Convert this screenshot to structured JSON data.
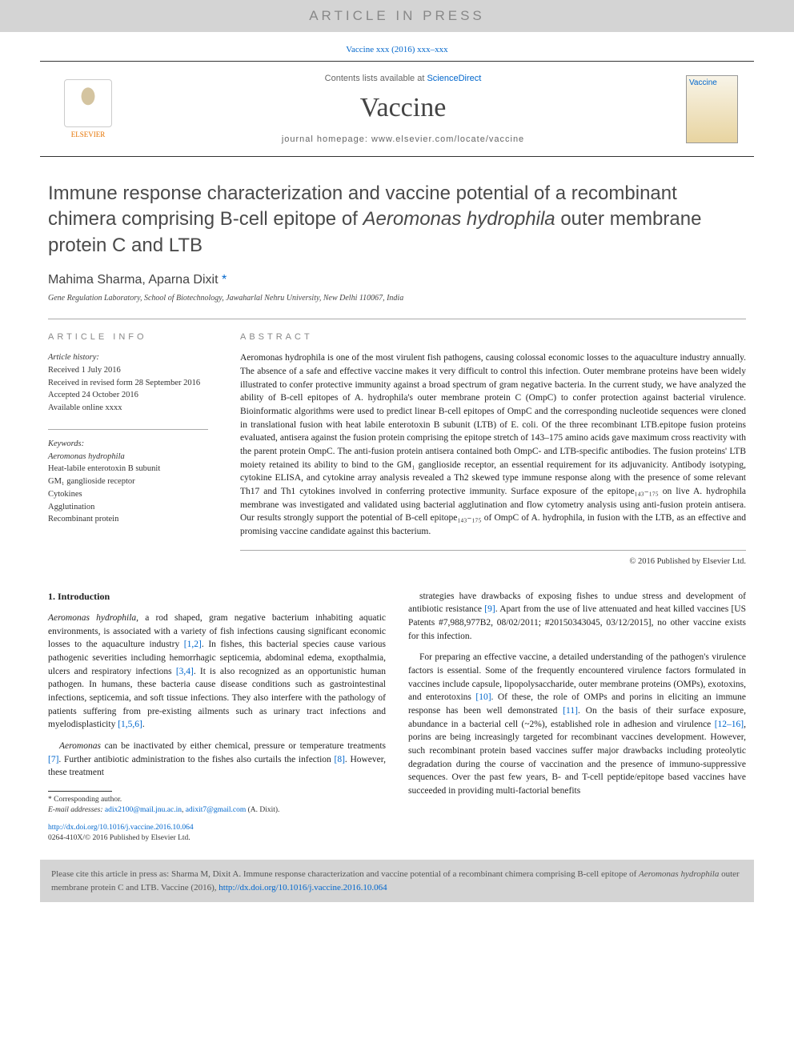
{
  "banner": "ARTICLE IN PRESS",
  "top_citation": "Vaccine xxx (2016) xxx–xxx",
  "header": {
    "contents_prefix": "Contents lists available at ",
    "contents_link": "ScienceDirect",
    "journal": "Vaccine",
    "homepage_prefix": "journal homepage: ",
    "homepage": "www.elsevier.com/locate/vaccine",
    "publisher_logo": "ELSEVIER",
    "cover_label": "Vaccine"
  },
  "title_part1": "Immune response characterization and vaccine potential of a recombinant chimera comprising B-cell epitope of ",
  "title_italic": "Aeromonas hydrophila",
  "title_part2": " outer membrane protein C and LTB",
  "authors": "Mahima Sharma, Aparna Dixit",
  "corr_mark": "*",
  "affiliation": "Gene Regulation Laboratory, School of Biotechnology, Jawaharlal Nehru University, New Delhi 110067, India",
  "info_heading": "ARTICLE INFO",
  "abstract_heading": "ABSTRACT",
  "history": {
    "label": "Article history:",
    "received": "Received 1 July 2016",
    "revised": "Received in revised form 28 September 2016",
    "accepted": "Accepted 24 October 2016",
    "online": "Available online xxxx"
  },
  "keywords": {
    "label": "Keywords:",
    "items": [
      "Aeromonas hydrophila",
      "Heat-labile enterotoxin B subunit",
      "GM₁ ganglioside receptor",
      "Cytokines",
      "Agglutination",
      "Recombinant protein"
    ]
  },
  "abstract": "Aeromonas hydrophila is one of the most virulent fish pathogens, causing colossal economic losses to the aquaculture industry annually. The absence of a safe and effective vaccine makes it very difficult to control this infection. Outer membrane proteins have been widely illustrated to confer protective immunity against a broad spectrum of gram negative bacteria. In the current study, we have analyzed the ability of B-cell epitopes of A. hydrophila's outer membrane protein C (OmpC) to confer protection against bacterial virulence. Bioinformatic algorithms were used to predict linear B-cell epitopes of OmpC and the corresponding nucleotide sequences were cloned in translational fusion with heat labile enterotoxin B subunit (LTB) of E. coli. Of the three recombinant LTB.epitope fusion proteins evaluated, antisera against the fusion protein comprising the epitope stretch of 143–175 amino acids gave maximum cross reactivity with the parent protein OmpC. The anti-fusion protein antisera contained both OmpC- and LTB-specific antibodies. The fusion proteins' LTB moiety retained its ability to bind to the GM₁ ganglioside receptor, an essential requirement for its adjuvanicity. Antibody isotyping, cytokine ELISA, and cytokine array analysis revealed a Th2 skewed type immune response along with the presence of some relevant Th17 and Th1 cytokines involved in conferring protective immunity. Surface exposure of the epitope₁₄₃₋₁₇₅ on live A. hydrophila membrane was investigated and validated using bacterial agglutination and flow cytometry analysis using anti-fusion protein antisera. Our results strongly support the potential of B-cell epitope₁₄₃₋₁₇₅ of OmpC of A. hydrophila, in fusion with the LTB, as an effective and promising vaccine candidate against this bacterium.",
  "copyright": "© 2016 Published by Elsevier Ltd.",
  "intro_heading": "1. Introduction",
  "para1": "Aeromonas hydrophila, a rod shaped, gram negative bacterium inhabiting aquatic environments, is associated with a variety of fish infections causing significant economic losses to the aquaculture industry [1,2]. In fishes, this bacterial species cause various pathogenic severities including hemorrhagic septicemia, abdominal edema, exopthalmia, ulcers and respiratory infections [3,4]. It is also recognized as an opportunistic human pathogen. In humans, these bacteria cause disease conditions such as gastrointestinal infections, septicemia, and soft tissue infections. They also interfere with the pathology of patients suffering from pre-existing ailments such as urinary tract infections and myelodisplasticity [1,5,6].",
  "para2": "Aeromonas can be inactivated by either chemical, pressure or temperature treatments [7]. Further antibiotic administration to the fishes also curtails the infection [8]. However, these treatment",
  "para3": "strategies have drawbacks of exposing fishes to undue stress and development of antibiotic resistance [9]. Apart from the use of live attenuated and heat killed vaccines [US Patents #7,988,977B2, 08/02/2011; #20150343045, 03/12/2015], no other vaccine exists for this infection.",
  "para4": "For preparing an effective vaccine, a detailed understanding of the pathogen's virulence factors is essential. Some of the frequently encountered virulence factors formulated in vaccines include capsule, lipopolysaccharide, outer membrane proteins (OMPs), exotoxins, and enterotoxins [10]. Of these, the role of OMPs and porins in eliciting an immune response has been well demonstrated [11]. On the basis of their surface exposure, abundance in a bacterial cell (~2%), established role in adhesion and virulence [12–16], porins are being increasingly targeted for recombinant vaccines development. However, such recombinant protein based vaccines suffer major drawbacks including proteolytic degradation during the course of vaccination and the presence of immuno-suppressive sequences. Over the past few years, B- and T-cell peptide/epitope based vaccines have succeeded in providing multi-factorial benefits",
  "corr_label": "* Corresponding author.",
  "email_label": "E-mail addresses: ",
  "email1": "adix2100@mail.jnu.ac.in",
  "email2": "adixit7@gmail.com",
  "email_suffix": " (A. Dixit).",
  "doi_link": "http://dx.doi.org/10.1016/j.vaccine.2016.10.064",
  "issn_line": "0264-410X/© 2016 Published by Elsevier Ltd.",
  "cite_box_prefix": "Please cite this article in press as: Sharma M, Dixit A. Immune response characterization and vaccine potential of a recombinant chimera comprising B-cell epitope of ",
  "cite_box_italic": "Aeromonas hydrophila",
  "cite_box_suffix": " outer membrane protein C and LTB. Vaccine (2016), ",
  "cite_box_doi": "http://dx.doi.org/10.1016/j.vaccine.2016.10.064",
  "refs": {
    "r12": "[1,2]",
    "r34": "[3,4]",
    "r156": "[1,5,6]",
    "r7": "[7]",
    "r8": "[8]",
    "r9": "[9]",
    "r10": "[10]",
    "r11": "[11]",
    "r1216": "[12–16]"
  },
  "colors": {
    "link": "#0066cc",
    "banner_bg": "#d4d4d4",
    "banner_text": "#888888",
    "orange": "#e57200"
  }
}
